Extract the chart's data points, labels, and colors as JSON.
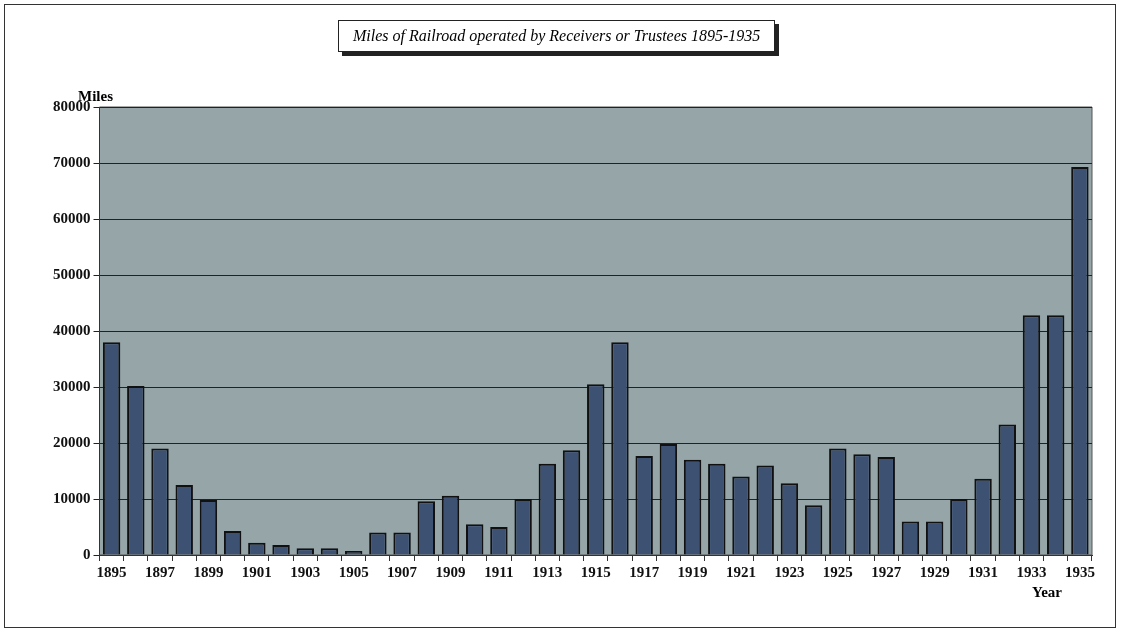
{
  "chart_data": {
    "type": "bar",
    "title": "Miles of Railroad operated by Receivers or Trustees 1895-1935",
    "xlabel": "Year",
    "ylabel": "Miles",
    "categories": [
      "1895",
      null,
      "1897",
      null,
      "1899",
      null,
      "1901",
      null,
      "1903",
      null,
      "1905",
      null,
      "1907",
      null,
      "1909",
      null,
      "1911",
      null,
      "1913",
      null,
      "1915",
      null,
      "1917",
      null,
      "1919",
      null,
      "1921",
      null,
      "1923",
      null,
      "1925",
      null,
      "1927",
      null,
      "1929",
      null,
      "1931",
      null,
      "1933",
      null,
      "1935"
    ],
    "values": [
      38000,
      30200,
      19000,
      12500,
      9800,
      4300,
      2200,
      1800,
      1200,
      1200,
      700,
      4000,
      4000,
      9600,
      10600,
      5500,
      5000,
      10000,
      16300,
      18700,
      30500,
      38000,
      17700,
      19800,
      17000,
      16300,
      14000,
      16000,
      12800,
      8900,
      19000,
      18000,
      17500,
      6000,
      6000,
      10000,
      13600,
      23300,
      42800,
      42800,
      69300
    ],
    "color": "#3d5173",
    "ylim": [
      0,
      80000
    ],
    "yticks": [
      0,
      10000,
      20000,
      30000,
      40000,
      50000,
      60000,
      70000,
      80000
    ],
    "grid": "y"
  }
}
